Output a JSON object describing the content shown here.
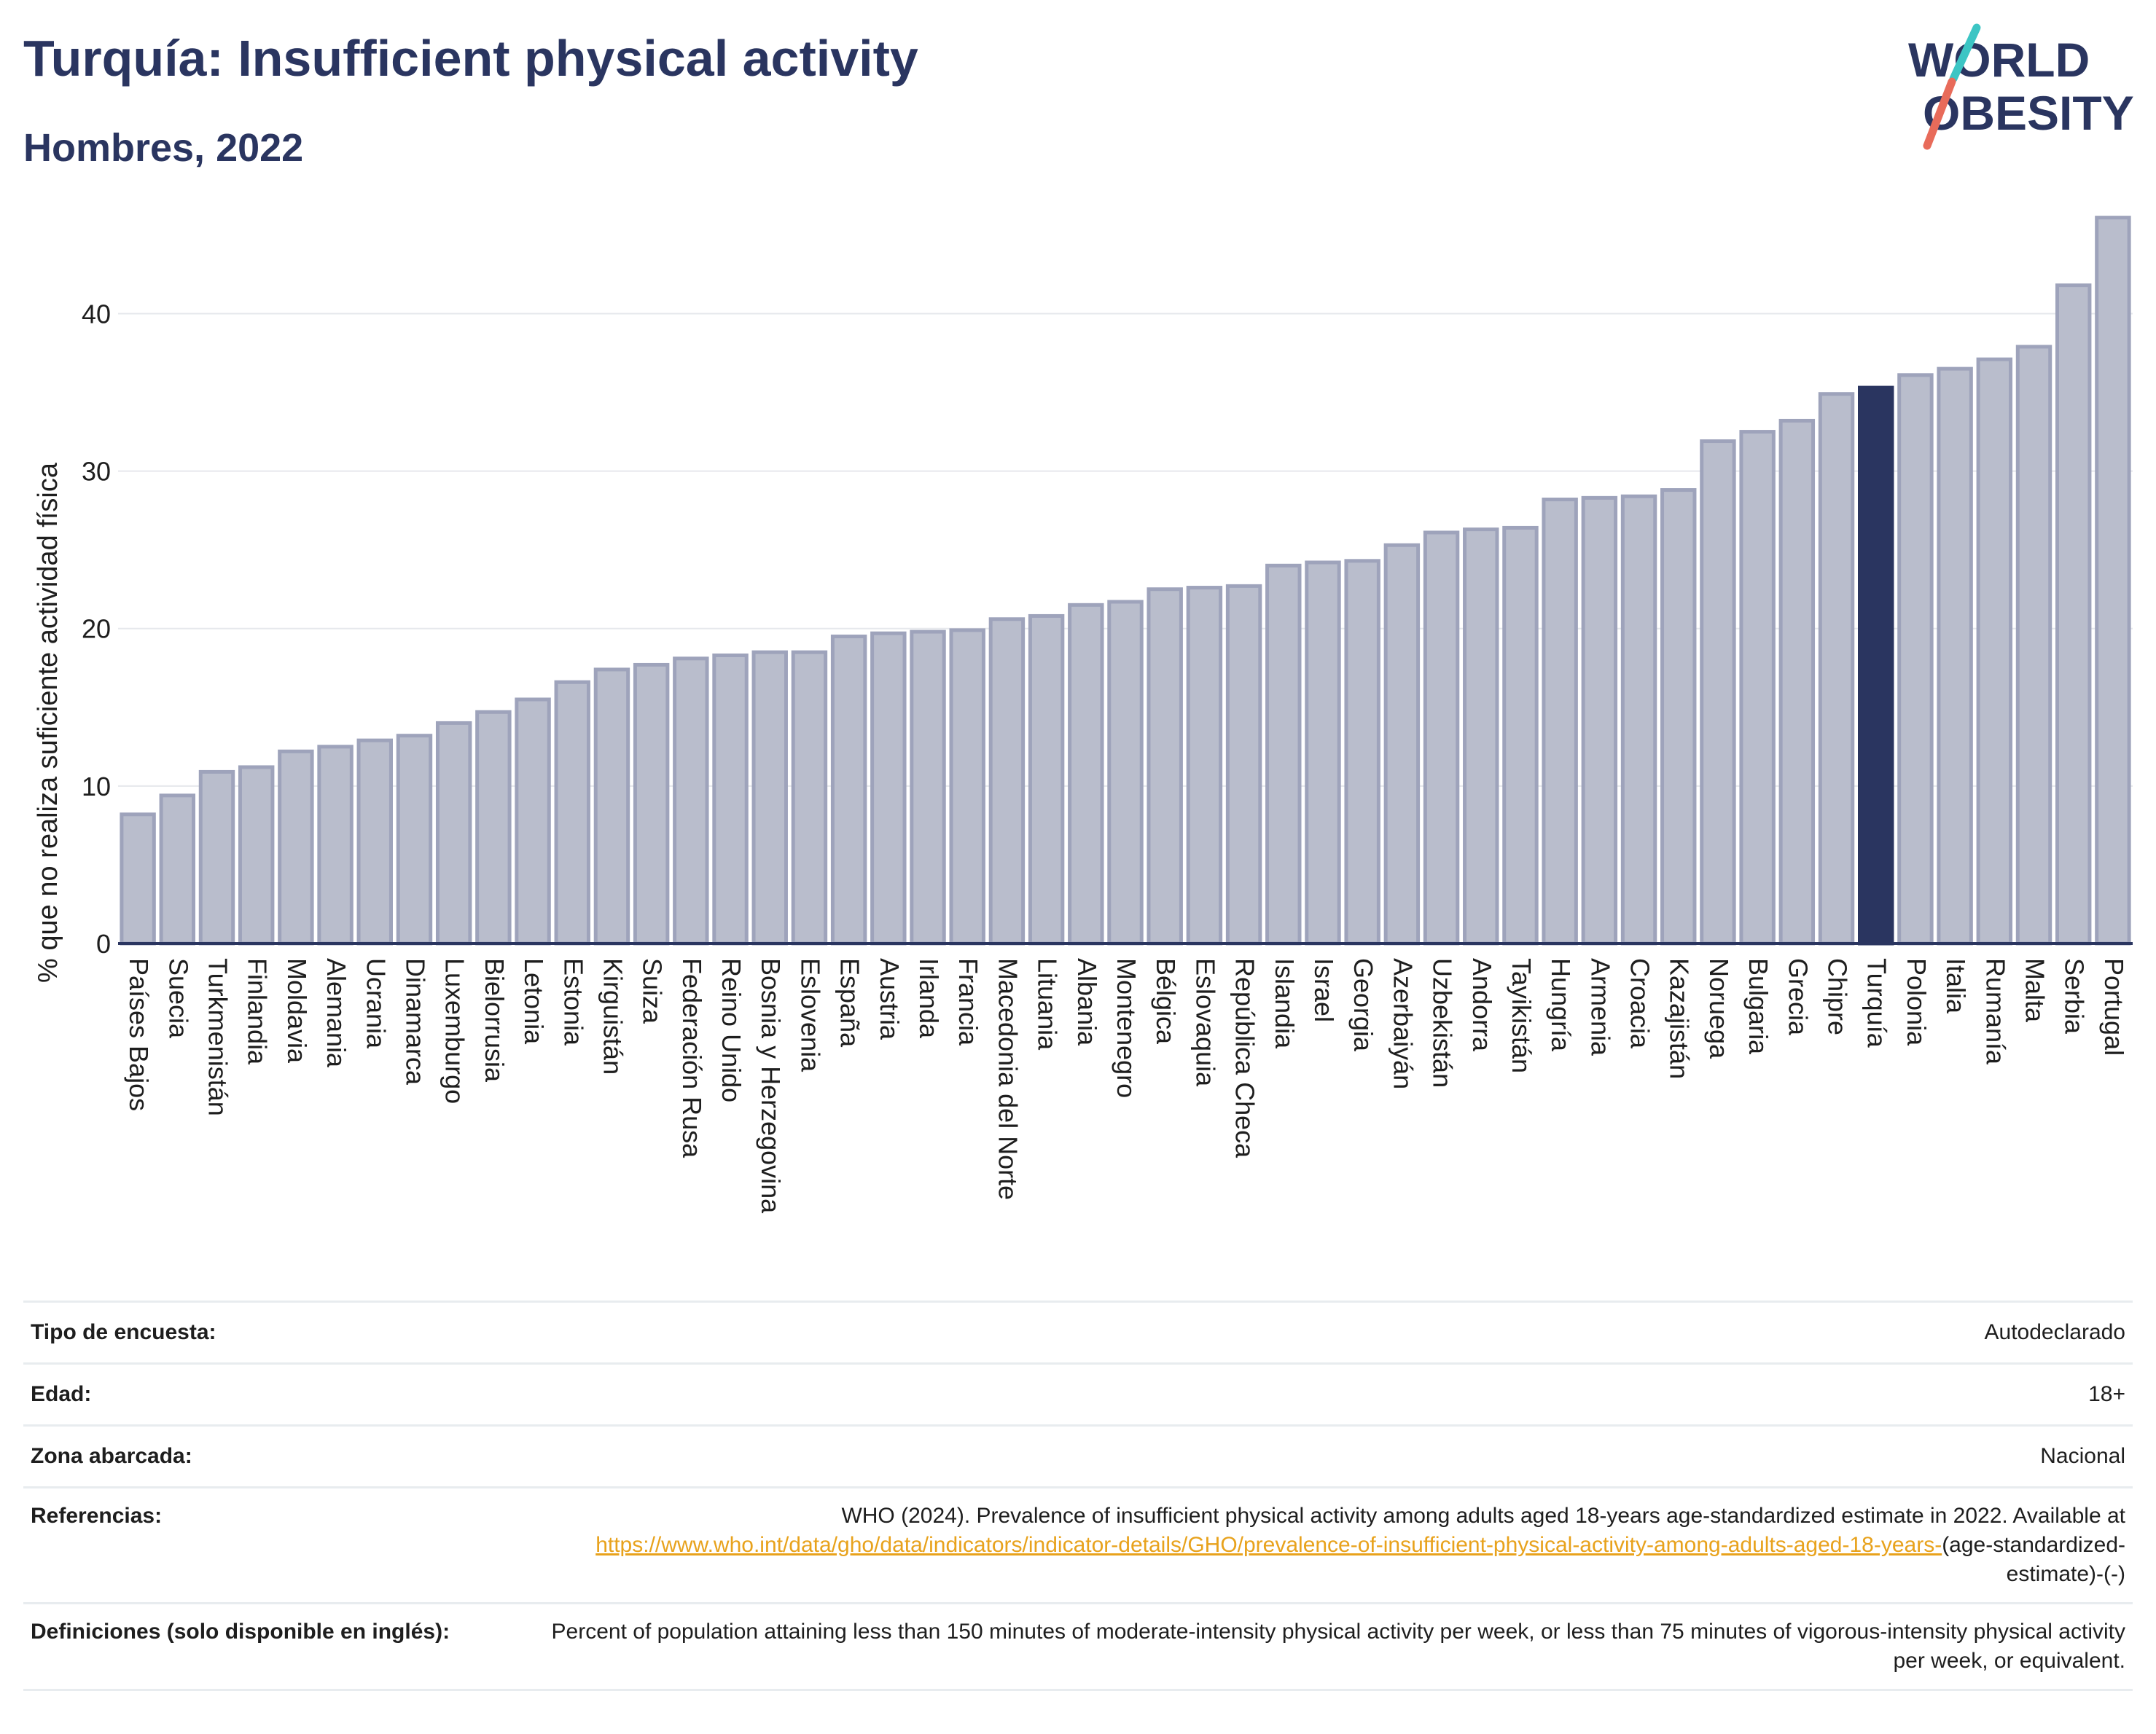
{
  "header": {
    "title": "Turquía: Insufficient physical activity",
    "subtitle": "Hombres, 2022",
    "logo_line1": "WORLD",
    "logo_line2": "OBESITY"
  },
  "chart_data": {
    "type": "bar",
    "title": "Turquía: Insufficient physical activity",
    "subtitle": "Hombres, 2022",
    "xlabel": "",
    "ylabel": "% que no realiza suficiente actividad física",
    "ylim": [
      0,
      46.5
    ],
    "yticks": [
      0,
      10,
      20,
      30,
      40
    ],
    "grid": true,
    "highlight": "Turquía",
    "colors": {
      "bar": "#b9bdcc",
      "bar_edge": "#9ea3bb",
      "highlight": "#2a3560",
      "axis": "#2a3560",
      "grid": "#e6e8ec"
    },
    "categories": [
      "Países Bajos",
      "Suecia",
      "Turkmenistán",
      "Finlandia",
      "Moldavia",
      "Alemania",
      "Ucrania",
      "Dinamarca",
      "Luxemburgo",
      "Bielorrusia",
      "Letonia",
      "Estonia",
      "Kirguistán",
      "Suiza",
      "Federación Rusa",
      "Reino Unido",
      "Bosnia y Herzegovina",
      "Eslovenia",
      "España",
      "Austria",
      "Irlanda",
      "Francia",
      "Macedonia del Norte",
      "Lituania",
      "Albania",
      "Montenegro",
      "Bélgica",
      "Eslovaquia",
      "República Checa",
      "Islandia",
      "Israel",
      "Georgia",
      "Azerbaiyán",
      "Uzbekistán",
      "Andorra",
      "Tayikistán",
      "Hungría",
      "Armenia",
      "Croacia",
      "Kazajistán",
      "Noruega",
      "Bulgaria",
      "Grecia",
      "Chipre",
      "Turquía",
      "Polonia",
      "Italia",
      "Rumanía",
      "Malta",
      "Serbia",
      "Portugal"
    ],
    "values": [
      8.2,
      9.4,
      10.9,
      11.2,
      12.2,
      12.5,
      12.9,
      13.2,
      14.0,
      14.7,
      15.5,
      16.6,
      17.4,
      17.7,
      18.1,
      18.3,
      18.5,
      18.5,
      19.5,
      19.7,
      19.8,
      19.9,
      20.6,
      20.8,
      21.5,
      21.7,
      22.5,
      22.6,
      22.7,
      24.0,
      24.2,
      24.3,
      25.3,
      26.1,
      26.3,
      26.4,
      28.2,
      28.3,
      28.4,
      28.8,
      31.9,
      32.5,
      33.2,
      34.9,
      35.3,
      36.1,
      36.5,
      37.1,
      37.9,
      41.8,
      46.1
    ]
  },
  "info": {
    "survey_label": "Tipo de encuesta:",
    "survey_value": "Autodeclarado",
    "age_label": "Edad:",
    "age_value": "18+",
    "area_label": "Zona abarcada:",
    "area_value": "Nacional",
    "ref_label": "Referencias:",
    "ref_text": "WHO (2024). Prevalence of insufficient physical activity among adults aged 18-years age-standardized estimate in 2022. Available at ",
    "ref_link": "https://www.who.int/data/gho/data/indicators/indicator-details/GHO/prevalence-of-insufficient-physical-activity-among-adults-aged-18-years-",
    "ref_tail": "(age-standardized-estimate)-(-)",
    "def_label": "Definiciones (solo disponible en inglés):",
    "def_value": "Percent of population attaining less than 150 minutes of moderate-intensity physical activity per week, or less than 75 minutes of vigorous-intensity physical activity per week, or equivalent."
  }
}
